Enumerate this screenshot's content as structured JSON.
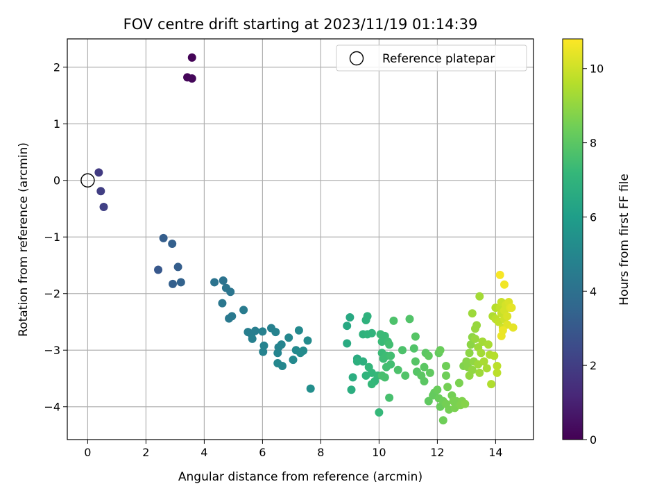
{
  "chart_data": {
    "type": "scatter",
    "title": "FOV centre drift starting at 2023/11/19 01:14:39",
    "xlabel": "Angular distance from reference (arcmin)",
    "ylabel": "Rotation from reference (arcmin)",
    "xlim": [
      -0.7,
      15.3
    ],
    "ylim": [
      -4.58,
      2.5
    ],
    "x_ticks": [
      "0",
      "2",
      "4",
      "6",
      "8",
      "10",
      "12",
      "14"
    ],
    "x_tick_values": [
      0,
      2,
      4,
      6,
      8,
      10,
      12,
      14
    ],
    "y_ticks": [
      "−4",
      "−3",
      "−2",
      "−1",
      "0",
      "1",
      "2"
    ],
    "y_tick_values": [
      -4,
      -3,
      -2,
      -1,
      0,
      1,
      2
    ],
    "grid": true,
    "legend_position": "top-right",
    "reference": {
      "label": "Reference platepar",
      "x": 0,
      "y": 0,
      "marker": "open-circle"
    },
    "colorbar": {
      "label": "Hours from first FF file",
      "colormap": "viridis",
      "range": [
        0,
        10.8
      ],
      "ticks": [
        "0",
        "2",
        "4",
        "6",
        "8",
        "10"
      ],
      "tick_values": [
        0,
        2,
        4,
        6,
        8,
        10
      ],
      "stops": [
        "#440154",
        "#482878",
        "#3e4989",
        "#31688e",
        "#26828e",
        "#1f9e89",
        "#35b779",
        "#6ece58",
        "#b5de2b",
        "#fde725"
      ]
    },
    "points": [
      [
        3.58,
        2.17,
        0.1
      ],
      [
        3.42,
        1.82,
        0.15
      ],
      [
        3.58,
        1.8,
        0.2
      ],
      [
        0.38,
        0.14,
        1.9
      ],
      [
        0.45,
        -0.19,
        2.0
      ],
      [
        0.55,
        -0.47,
        2.1
      ],
      [
        2.6,
        -1.02,
        3.2
      ],
      [
        2.9,
        -1.12,
        3.3
      ],
      [
        2.42,
        -1.58,
        3.0
      ],
      [
        3.1,
        -1.53,
        3.2
      ],
      [
        2.92,
        -1.83,
        3.3
      ],
      [
        3.2,
        -1.8,
        3.4
      ],
      [
        4.35,
        -1.8,
        4.1
      ],
      [
        4.65,
        -1.77,
        4.1
      ],
      [
        4.75,
        -1.9,
        4.2
      ],
      [
        4.9,
        -1.97,
        4.2
      ],
      [
        4.62,
        -2.17,
        4.3
      ],
      [
        4.95,
        -2.4,
        4.4
      ],
      [
        4.85,
        -2.44,
        4.4
      ],
      [
        5.35,
        -2.29,
        4.5
      ],
      [
        5.5,
        -2.68,
        4.6
      ],
      [
        5.62,
        -2.72,
        4.6
      ],
      [
        5.65,
        -2.8,
        4.7
      ],
      [
        5.75,
        -2.66,
        4.6
      ],
      [
        6.0,
        -2.67,
        4.7
      ],
      [
        6.05,
        -2.92,
        4.8
      ],
      [
        6.02,
        -3.03,
        4.8
      ],
      [
        6.3,
        -2.61,
        4.7
      ],
      [
        6.45,
        -2.68,
        4.8
      ],
      [
        6.55,
        -2.95,
        4.8
      ],
      [
        6.52,
        -3.05,
        4.9
      ],
      [
        6.65,
        -2.9,
        4.9
      ],
      [
        6.52,
        -3.23,
        5.0
      ],
      [
        6.68,
        -3.28,
        5.0
      ],
      [
        6.9,
        -2.78,
        5.0
      ],
      [
        7.05,
        -3.17,
        5.1
      ],
      [
        7.15,
        -3.0,
        5.1
      ],
      [
        7.25,
        -2.65,
        5.1
      ],
      [
        7.3,
        -3.05,
        5.2
      ],
      [
        7.4,
        -3.01,
        5.2
      ],
      [
        7.55,
        -2.83,
        5.2
      ],
      [
        7.65,
        -3.68,
        5.3
      ],
      [
        8.9,
        -2.57,
        6.5
      ],
      [
        9.0,
        -2.42,
        6.5
      ],
      [
        8.9,
        -2.88,
        6.6
      ],
      [
        9.25,
        -3.15,
        6.6
      ],
      [
        9.05,
        -3.7,
        6.7
      ],
      [
        9.1,
        -3.48,
        6.7
      ],
      [
        9.25,
        -3.2,
        6.8
      ],
      [
        9.45,
        -3.2,
        6.8
      ],
      [
        9.55,
        -2.47,
        6.9
      ],
      [
        9.6,
        -2.4,
        6.9
      ],
      [
        9.45,
        -2.72,
        6.9
      ],
      [
        9.6,
        -2.72,
        7.0
      ],
      [
        9.75,
        -2.7,
        7.0
      ],
      [
        9.55,
        -3.45,
        7.0
      ],
      [
        9.65,
        -3.3,
        7.1
      ],
      [
        9.75,
        -3.4,
        7.1
      ],
      [
        9.85,
        -3.55,
        7.1
      ],
      [
        9.75,
        -3.6,
        7.2
      ],
      [
        9.95,
        -3.45,
        7.2
      ],
      [
        10.0,
        -4.1,
        7.2
      ],
      [
        10.05,
        -2.72,
        7.3
      ],
      [
        10.1,
        -2.85,
        7.3
      ],
      [
        10.2,
        -2.75,
        7.3
      ],
      [
        10.1,
        -3.05,
        7.3
      ],
      [
        10.15,
        -3.15,
        7.4
      ],
      [
        10.25,
        -3.1,
        7.4
      ],
      [
        10.3,
        -2.85,
        7.4
      ],
      [
        10.35,
        -2.9,
        7.5
      ],
      [
        10.4,
        -3.1,
        7.5
      ],
      [
        10.25,
        -3.3,
        7.5
      ],
      [
        10.4,
        -3.25,
        7.5
      ],
      [
        10.1,
        -3.45,
        7.6
      ],
      [
        10.2,
        -3.48,
        7.6
      ],
      [
        10.35,
        -3.84,
        7.6
      ],
      [
        10.5,
        -2.48,
        7.7
      ],
      [
        10.65,
        -3.35,
        7.7
      ],
      [
        10.8,
        -3.0,
        7.7
      ],
      [
        10.9,
        -3.45,
        7.8
      ],
      [
        11.05,
        -2.45,
        7.8
      ],
      [
        11.2,
        -2.97,
        7.8
      ],
      [
        11.25,
        -2.76,
        7.9
      ],
      [
        11.25,
        -3.2,
        7.9
      ],
      [
        11.3,
        -3.38,
        7.9
      ],
      [
        11.45,
        -3.45,
        8.0
      ],
      [
        11.55,
        -3.3,
        8.0
      ],
      [
        11.6,
        -3.05,
        8.0
      ],
      [
        11.55,
        -3.55,
        8.0
      ],
      [
        11.75,
        -3.4,
        8.1
      ],
      [
        11.7,
        -3.1,
        8.1
      ],
      [
        11.7,
        -3.9,
        8.1
      ],
      [
        11.85,
        -3.8,
        8.2
      ],
      [
        11.9,
        -3.75,
        8.2
      ],
      [
        12.05,
        -3.05,
        8.2
      ],
      [
        12.1,
        -3.0,
        8.3
      ],
      [
        12.0,
        -3.7,
        8.3
      ],
      [
        12.05,
        -3.85,
        8.3
      ],
      [
        12.1,
        -4.0,
        8.3
      ],
      [
        12.2,
        -3.9,
        8.4
      ],
      [
        12.2,
        -4.24,
        8.4
      ],
      [
        12.3,
        -3.28,
        8.4
      ],
      [
        12.3,
        -3.45,
        8.4
      ],
      [
        12.35,
        -3.65,
        8.5
      ],
      [
        12.3,
        -3.95,
        8.5
      ],
      [
        12.4,
        -4.05,
        8.5
      ],
      [
        12.5,
        -3.8,
        8.5
      ],
      [
        12.55,
        -3.9,
        8.6
      ],
      [
        12.6,
        -4.02,
        8.6
      ],
      [
        12.65,
        -3.9,
        8.6
      ],
      [
        12.75,
        -3.58,
        8.6
      ],
      [
        12.8,
        -3.97,
        8.7
      ],
      [
        12.85,
        -3.9,
        8.7
      ],
      [
        12.9,
        -3.28,
        8.7
      ],
      [
        12.95,
        -3.95,
        8.8
      ],
      [
        13.0,
        -3.2,
        8.8
      ],
      [
        13.05,
        -3.3,
        8.8
      ],
      [
        13.1,
        -3.05,
        8.9
      ],
      [
        13.15,
        -2.9,
        8.9
      ],
      [
        13.2,
        -2.77,
        8.9
      ],
      [
        13.1,
        -3.45,
        9.0
      ],
      [
        13.2,
        -3.35,
        9.0
      ],
      [
        13.25,
        -3.2,
        9.0
      ],
      [
        13.3,
        -2.62,
        9.1
      ],
      [
        13.35,
        -2.56,
        9.1
      ],
      [
        13.3,
        -2.8,
        9.1
      ],
      [
        13.4,
        -2.95,
        9.2
      ],
      [
        13.4,
        -3.25,
        9.2
      ],
      [
        13.45,
        -3.4,
        9.2
      ],
      [
        13.2,
        -2.35,
        9.2
      ],
      [
        13.45,
        -2.05,
        9.3
      ],
      [
        13.55,
        -2.85,
        9.3
      ],
      [
        13.5,
        -3.05,
        9.3
      ],
      [
        13.6,
        -3.2,
        9.4
      ],
      [
        13.7,
        -3.32,
        9.4
      ],
      [
        13.75,
        -2.9,
        9.4
      ],
      [
        13.8,
        -3.08,
        9.5
      ],
      [
        13.85,
        -3.6,
        9.5
      ],
      [
        13.9,
        -2.4,
        9.5
      ],
      [
        13.95,
        -3.1,
        9.6
      ],
      [
        14.0,
        -2.25,
        9.6
      ],
      [
        14.0,
        -2.45,
        9.7
      ],
      [
        14.05,
        -3.28,
        9.7
      ],
      [
        14.05,
        -3.4,
        9.7
      ],
      [
        14.1,
        -2.5,
        9.8
      ],
      [
        14.15,
        -2.25,
        9.8
      ],
      [
        14.2,
        -2.15,
        9.9
      ],
      [
        14.2,
        -2.35,
        9.9
      ],
      [
        14.25,
        -2.6,
        10.0
      ],
      [
        14.3,
        -2.45,
        10.0
      ],
      [
        14.3,
        -2.3,
        10.1
      ],
      [
        14.35,
        -2.2,
        10.1
      ],
      [
        14.4,
        -2.4,
        10.2
      ],
      [
        14.45,
        -2.15,
        10.2
      ],
      [
        14.5,
        -2.25,
        10.3
      ],
      [
        14.4,
        -2.55,
        10.3
      ],
      [
        14.55,
        -2.25,
        10.4
      ],
      [
        14.6,
        -2.6,
        10.4
      ],
      [
        14.2,
        -2.75,
        10.5
      ],
      [
        14.25,
        -2.65,
        10.5
      ],
      [
        14.3,
        -1.84,
        10.6
      ],
      [
        14.15,
        -1.67,
        10.7
      ]
    ]
  }
}
